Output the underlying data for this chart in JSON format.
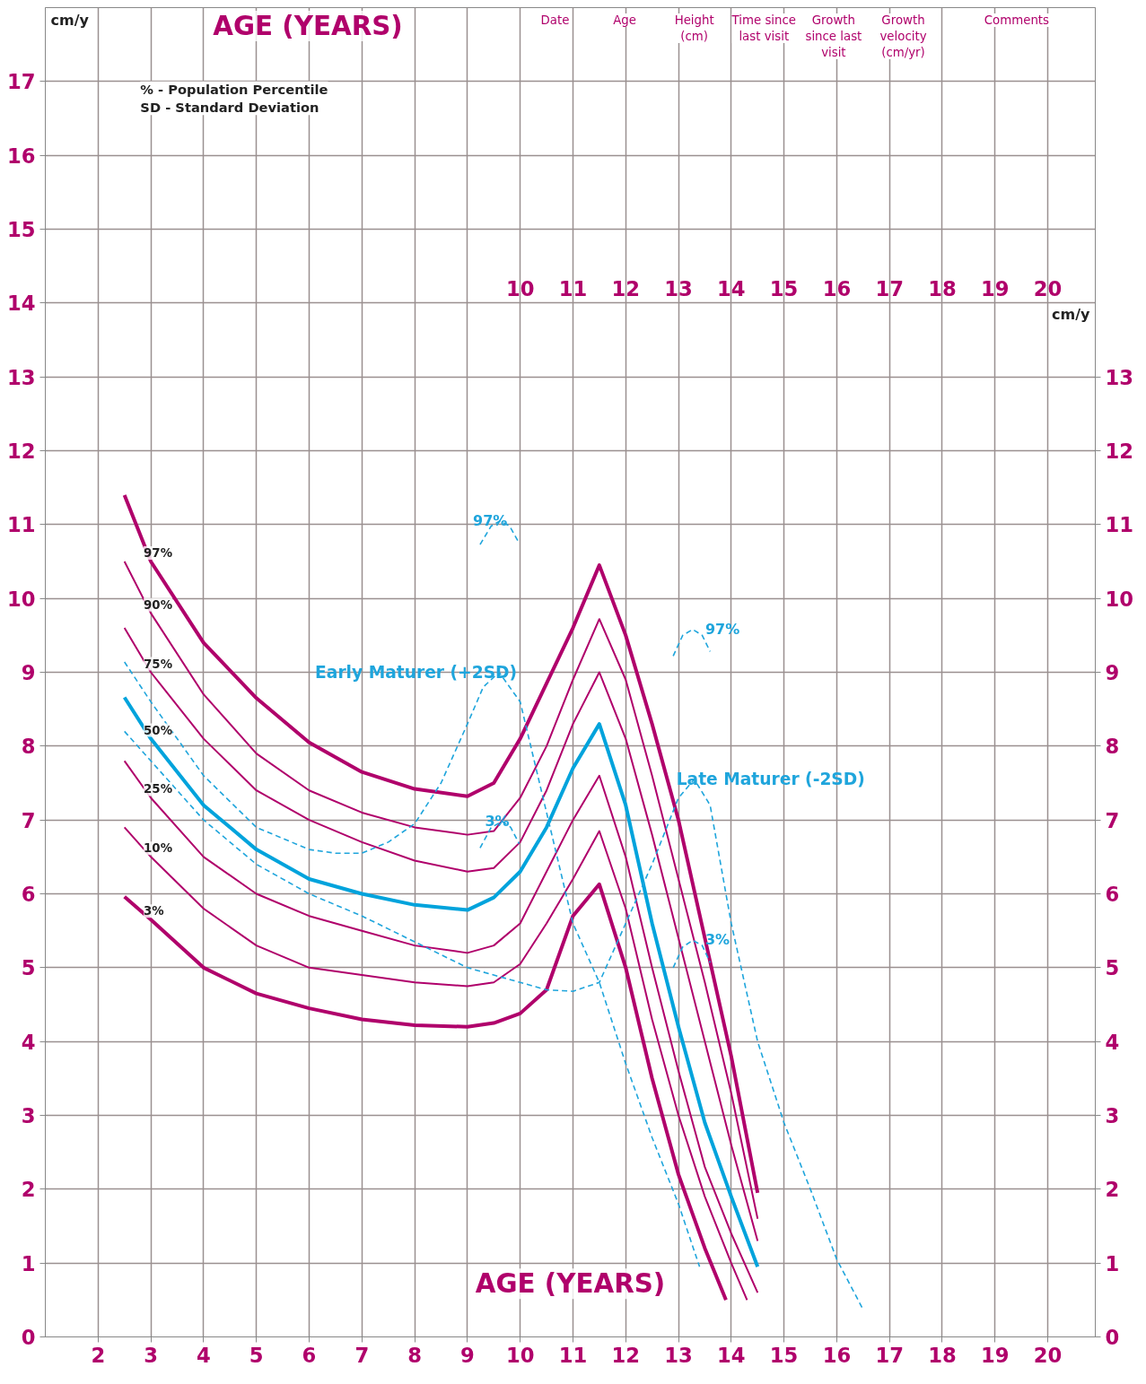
{
  "chart_data": {
    "type": "line",
    "title": "AGE (YEARS)",
    "xlabel": "AGE (YEARS)",
    "ylabel": "cm/y",
    "y2label": "cm/y",
    "x": [
      2.5,
      3,
      4,
      5,
      6,
      7,
      8,
      9,
      9.5,
      10,
      10.5,
      11,
      11.5,
      12,
      12.5,
      13,
      13.5,
      14,
      14.5
    ],
    "series": [
      {
        "name": "97%",
        "color": "#b0006b",
        "values": [
          11.4,
          10.5,
          9.4,
          8.65,
          8.05,
          7.65,
          7.42,
          7.32,
          7.5,
          8.1,
          8.85,
          9.6,
          10.45,
          9.5,
          8.3,
          7.0,
          5.4,
          3.8,
          1.95
        ]
      },
      {
        "name": "90%",
        "color": "#b0006b",
        "values": [
          10.5,
          9.8,
          8.7,
          7.9,
          7.4,
          7.1,
          6.9,
          6.8,
          6.85,
          7.3,
          8.0,
          8.9,
          9.72,
          8.9,
          7.6,
          6.2,
          4.8,
          3.3,
          1.6
        ]
      },
      {
        "name": "75%",
        "color": "#b0006b",
        "values": [
          9.6,
          9.0,
          8.1,
          7.4,
          7.0,
          6.7,
          6.45,
          6.3,
          6.35,
          6.7,
          7.4,
          8.3,
          9.0,
          8.1,
          6.8,
          5.4,
          4.0,
          2.6,
          1.3
        ]
      },
      {
        "name": "50%",
        "color": "#00a3dc",
        "values": [
          8.66,
          8.1,
          7.2,
          6.6,
          6.2,
          6.0,
          5.85,
          5.78,
          5.95,
          6.3,
          6.9,
          7.7,
          8.3,
          7.2,
          5.6,
          4.2,
          2.9,
          1.9,
          0.95
        ]
      },
      {
        "name": "25%",
        "color": "#b0006b",
        "values": [
          7.8,
          7.3,
          6.5,
          6.0,
          5.7,
          5.5,
          5.3,
          5.2,
          5.3,
          5.6,
          6.3,
          7.0,
          7.6,
          6.5,
          5.0,
          3.6,
          2.3,
          1.4,
          0.6
        ]
      },
      {
        "name": "10%",
        "color": "#b0006b",
        "x": [
          2.5,
          3,
          4,
          5,
          6,
          7,
          8,
          9,
          9.5,
          10,
          10.5,
          11,
          11.5,
          12,
          12.5,
          13,
          13.5,
          14,
          14.3
        ],
        "values": [
          6.9,
          6.5,
          5.8,
          5.3,
          5.0,
          4.9,
          4.8,
          4.75,
          4.8,
          5.05,
          5.6,
          6.2,
          6.85,
          5.8,
          4.3,
          3.0,
          1.9,
          1.0,
          0.5
        ]
      },
      {
        "name": "3%",
        "color": "#b0006b",
        "x": [
          2.5,
          3,
          4,
          5,
          6,
          7,
          8,
          9,
          9.5,
          10,
          10.5,
          11,
          11.5,
          12,
          12.5,
          13,
          13.5,
          13.9
        ],
        "values": [
          5.96,
          5.65,
          5.0,
          4.65,
          4.45,
          4.3,
          4.22,
          4.2,
          4.25,
          4.38,
          4.7,
          5.7,
          6.13,
          5.0,
          3.5,
          2.2,
          1.2,
          0.5
        ]
      },
      {
        "name": "Early Maturer (+2SD)",
        "color": "#1fa5dc",
        "line_style": "dashed",
        "x": [
          2.5,
          3,
          4,
          5,
          6,
          6.5,
          7,
          7.5,
          8,
          8.5,
          9,
          9.3,
          9.6,
          10,
          10.5,
          11,
          11.5,
          12,
          12.5,
          13,
          13.4
        ],
        "values": [
          9.14,
          8.6,
          7.6,
          6.9,
          6.6,
          6.55,
          6.55,
          6.7,
          6.95,
          7.5,
          8.3,
          8.8,
          9.0,
          8.6,
          7.1,
          5.6,
          4.8,
          3.7,
          2.7,
          1.8,
          0.95
        ]
      },
      {
        "name": "Late Maturer (-2SD)",
        "color": "#1fa5dc",
        "line_style": "dashed",
        "x": [
          2.5,
          3,
          4,
          5,
          6,
          7,
          8,
          9,
          10,
          10.5,
          11,
          11.5,
          12,
          12.5,
          13,
          13.3,
          13.6,
          14,
          14.5,
          15,
          15.5,
          16,
          16.5
        ],
        "values": [
          8.2,
          7.8,
          7.0,
          6.4,
          6.0,
          5.7,
          5.35,
          5.0,
          4.8,
          4.7,
          4.68,
          4.8,
          5.6,
          6.4,
          7.3,
          7.55,
          7.2,
          5.6,
          4.0,
          2.9,
          2.0,
          1.05,
          0.37
        ]
      },
      {
        "name": "97%",
        "color": "#1fa5dc",
        "line_style": "dashed",
        "x": [
          9.24,
          9.45,
          9.62,
          9.8,
          9.98
        ],
        "values": [
          10.73,
          10.98,
          11.05,
          10.98,
          10.75
        ]
      },
      {
        "name": "3%",
        "color": "#1fa5dc",
        "line_style": "dashed",
        "x": [
          9.24,
          9.45,
          9.66,
          9.82,
          9.98
        ],
        "values": [
          6.62,
          6.9,
          6.98,
          6.9,
          6.68
        ]
      },
      {
        "name": "97%",
        "color": "#1fa5dc",
        "line_style": "dashed",
        "x": [
          12.9,
          13.08,
          13.27,
          13.45,
          13.6
        ],
        "values": [
          9.22,
          9.5,
          9.58,
          9.5,
          9.28
        ]
      },
      {
        "name": "3%",
        "color": "#1fa5dc",
        "line_style": "dashed",
        "x": [
          12.9,
          13.08,
          13.27,
          13.45,
          13.6
        ],
        "values": [
          5.0,
          5.28,
          5.37,
          5.3,
          5.07
        ]
      }
    ],
    "xlim": [
      1,
      20.9
    ],
    "ylim": [
      0,
      18
    ],
    "y2lim": [
      0,
      18
    ],
    "xticks": [
      2,
      3,
      4,
      5,
      6,
      7,
      8,
      9,
      10,
      11,
      12,
      13,
      14,
      15,
      16,
      17,
      18,
      19,
      20
    ],
    "x2lim": [
      1,
      20.9
    ],
    "x2ticks": [
      10,
      11,
      12,
      13,
      14,
      15,
      16,
      17,
      18,
      19,
      20
    ],
    "yticks": [
      0,
      1,
      2,
      3,
      4,
      5,
      6,
      7,
      8,
      9,
      10,
      11,
      12,
      13,
      14,
      15,
      16,
      17
    ],
    "y2ticks": [
      0,
      1,
      2,
      3,
      4,
      5,
      6,
      7,
      8,
      9,
      10,
      11,
      12,
      13
    ],
    "grid": true,
    "annotations": [
      "% - Population Percentile",
      "SD - Standard Deviation",
      "Date",
      "Age",
      "Height\n(cm)",
      "Time since\nlast visit",
      "Growth\nsince last\nvisit",
      "Growth\nvelocity\n(cm/yr)",
      "Comments"
    ]
  }
}
